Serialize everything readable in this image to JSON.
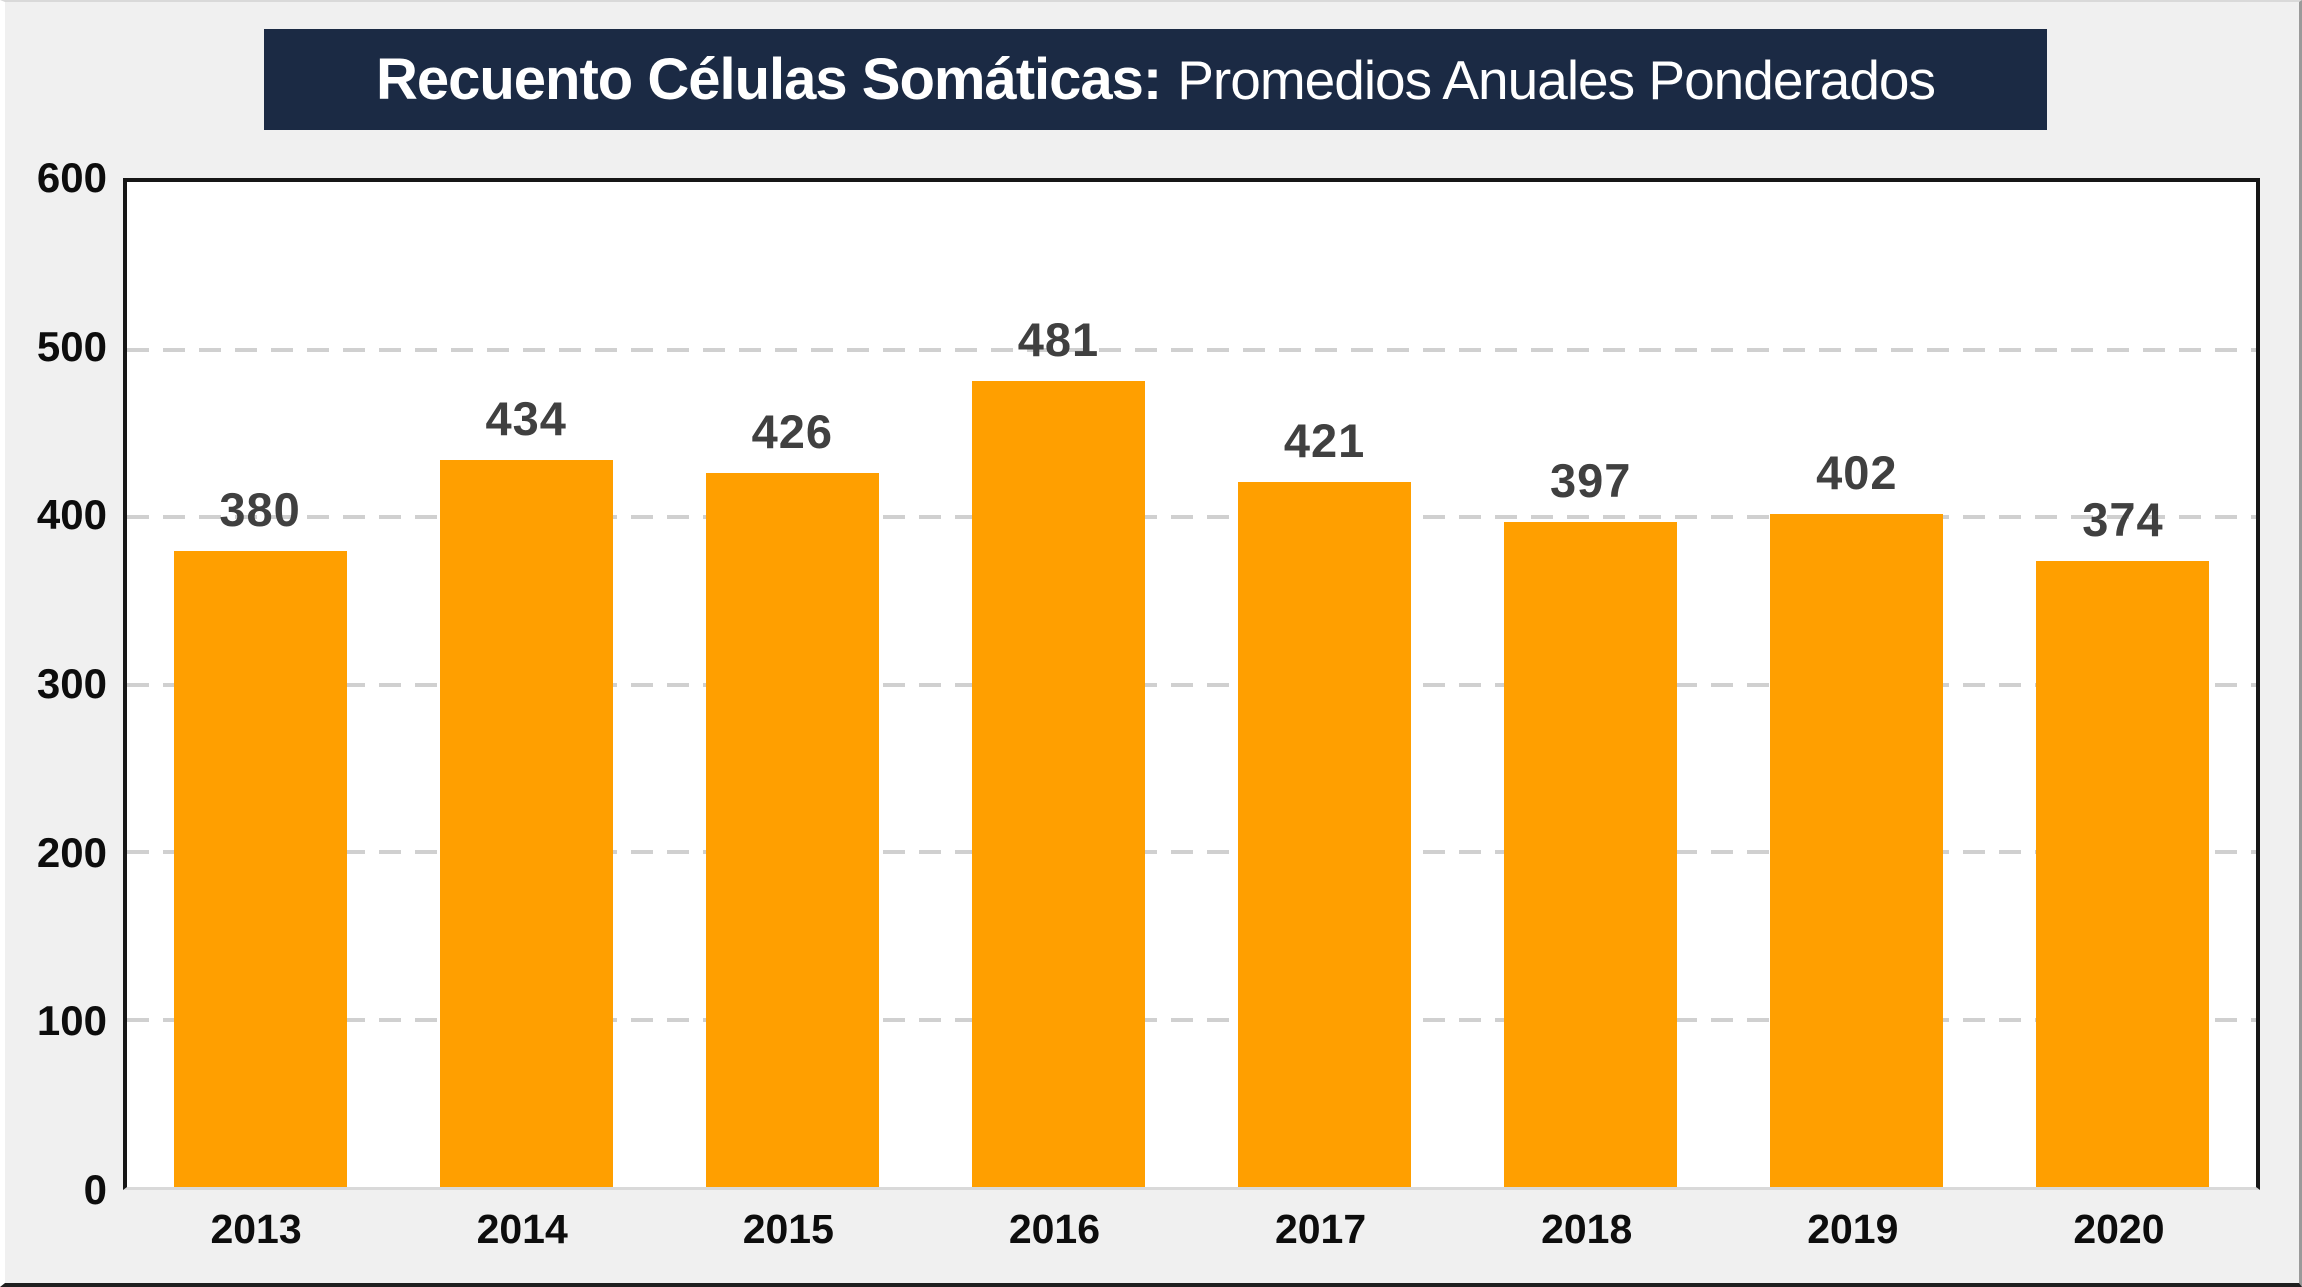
{
  "title": {
    "bold": "Recuento Células Somáticas:",
    "regular": "Promedios Anuales Ponderados"
  },
  "chart_data": {
    "type": "bar",
    "title": "Recuento Células Somáticas: Promedios Anuales Ponderados",
    "categories": [
      "2013",
      "2014",
      "2015",
      "2016",
      "2017",
      "2018",
      "2019",
      "2020"
    ],
    "values": [
      380,
      434,
      426,
      481,
      421,
      397,
      402,
      374
    ],
    "xlabel": "",
    "ylabel": "",
    "ylim": [
      0,
      600
    ],
    "yticks": [
      0,
      100,
      200,
      300,
      400,
      500,
      600
    ],
    "grid": "horizontal-dashed",
    "legend": "none",
    "data_labels": true,
    "colors": {
      "bar": "#ff9f00",
      "data_label": "#404040",
      "title_background": "#1b2a44",
      "title_text": "#ffffff",
      "gridline": "#d0d0d0",
      "axis_text": "#0d0d0d",
      "plot_background": "#ffffff",
      "page_background": "#f0f0f0"
    }
  }
}
